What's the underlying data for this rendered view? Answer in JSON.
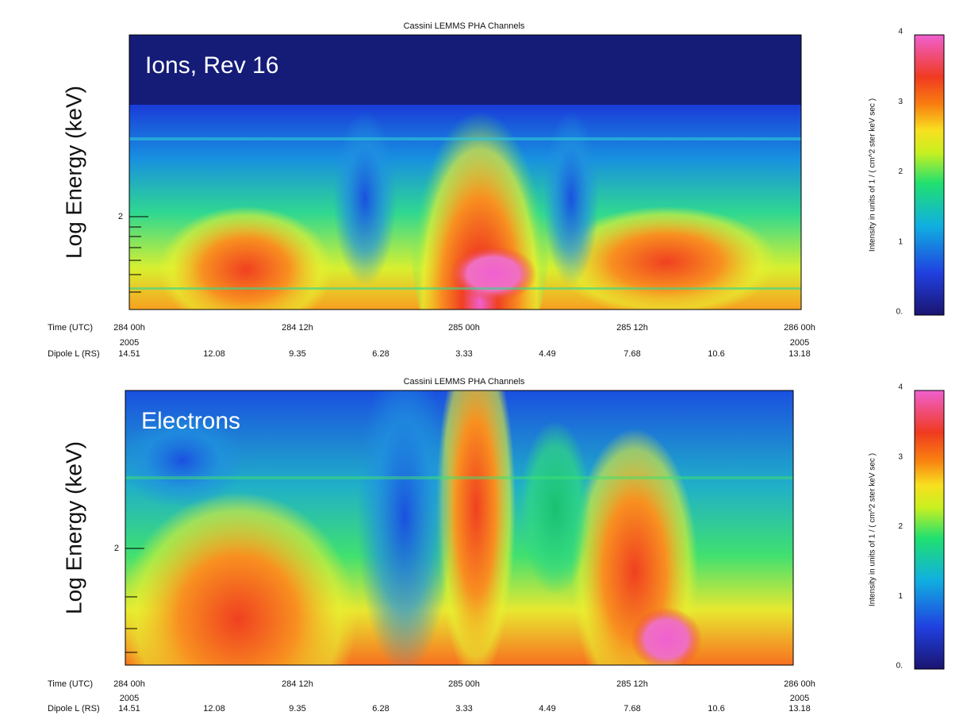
{
  "panels": [
    {
      "title": "Cassini LEMMS PHA Channels",
      "annotation": "Ions, Rev 16",
      "y_label": "Log Energy (keV)",
      "y_ticks": [
        "2"
      ],
      "time_label": "Time (UTC)",
      "time_ticks": [
        "284 00h",
        "284 12h",
        "285 00h",
        "285 12h",
        "286 00h"
      ],
      "years": [
        "2005",
        "2005"
      ],
      "dipole_label": "Dipole L (RS)",
      "dipole_values": [
        "14.51",
        "12.08",
        "9.35",
        "6.28",
        "3.33",
        "4.49",
        "7.68",
        "10.6",
        "13.18"
      ],
      "colorbar_label": "Intensity in units of 1 / ( cm^2 ster keV sec )",
      "colorbar_ticks": [
        "4",
        "3",
        "2",
        "1",
        "0."
      ]
    },
    {
      "title": "Cassini LEMMS PHA Channels",
      "annotation": "Electrons",
      "y_label": "Log Energy (keV)",
      "y_ticks": [
        "2"
      ],
      "time_label": "Time (UTC)",
      "time_ticks": [
        "284 00h",
        "284 12h",
        "285 00h",
        "285 12h",
        "286 00h"
      ],
      "years": [
        "2005",
        "2005"
      ],
      "dipole_label": "Dipole L (RS)",
      "dipole_values": [
        "14.51",
        "12.08",
        "9.35",
        "6.28",
        "3.33",
        "4.49",
        "7.68",
        "10.6",
        "13.18"
      ],
      "colorbar_label": "Intensity in units of 1 / ( cm^2 ster keV sec )",
      "colorbar_ticks": [
        "4",
        "3",
        "2",
        "1",
        "0."
      ]
    }
  ]
}
